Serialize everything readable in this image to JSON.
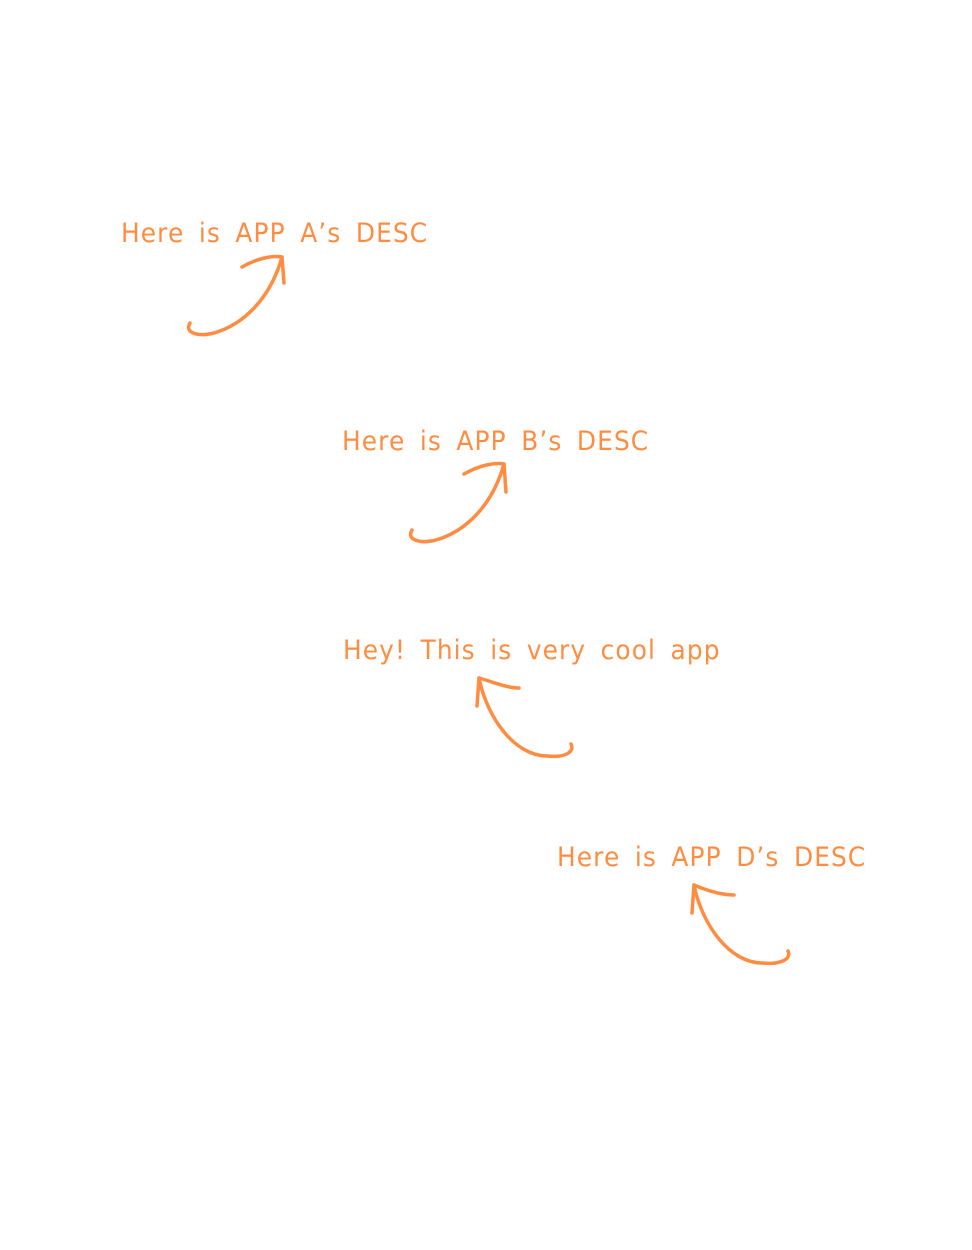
{
  "theme": {
    "ink_color": "#FF8C40",
    "background_color": "#FFFFFF"
  },
  "annotations": [
    {
      "text": "Here is APP A’s DESC",
      "arrow": "curved-arrow-icon"
    },
    {
      "text": "Here is APP B’s DESC",
      "arrow": "curved-arrow-icon"
    },
    {
      "text": "Hey! This is very cool app",
      "arrow": "curved-arrow-icon"
    },
    {
      "text": "Here is APP D’s DESC",
      "arrow": "curved-arrow-icon"
    }
  ]
}
